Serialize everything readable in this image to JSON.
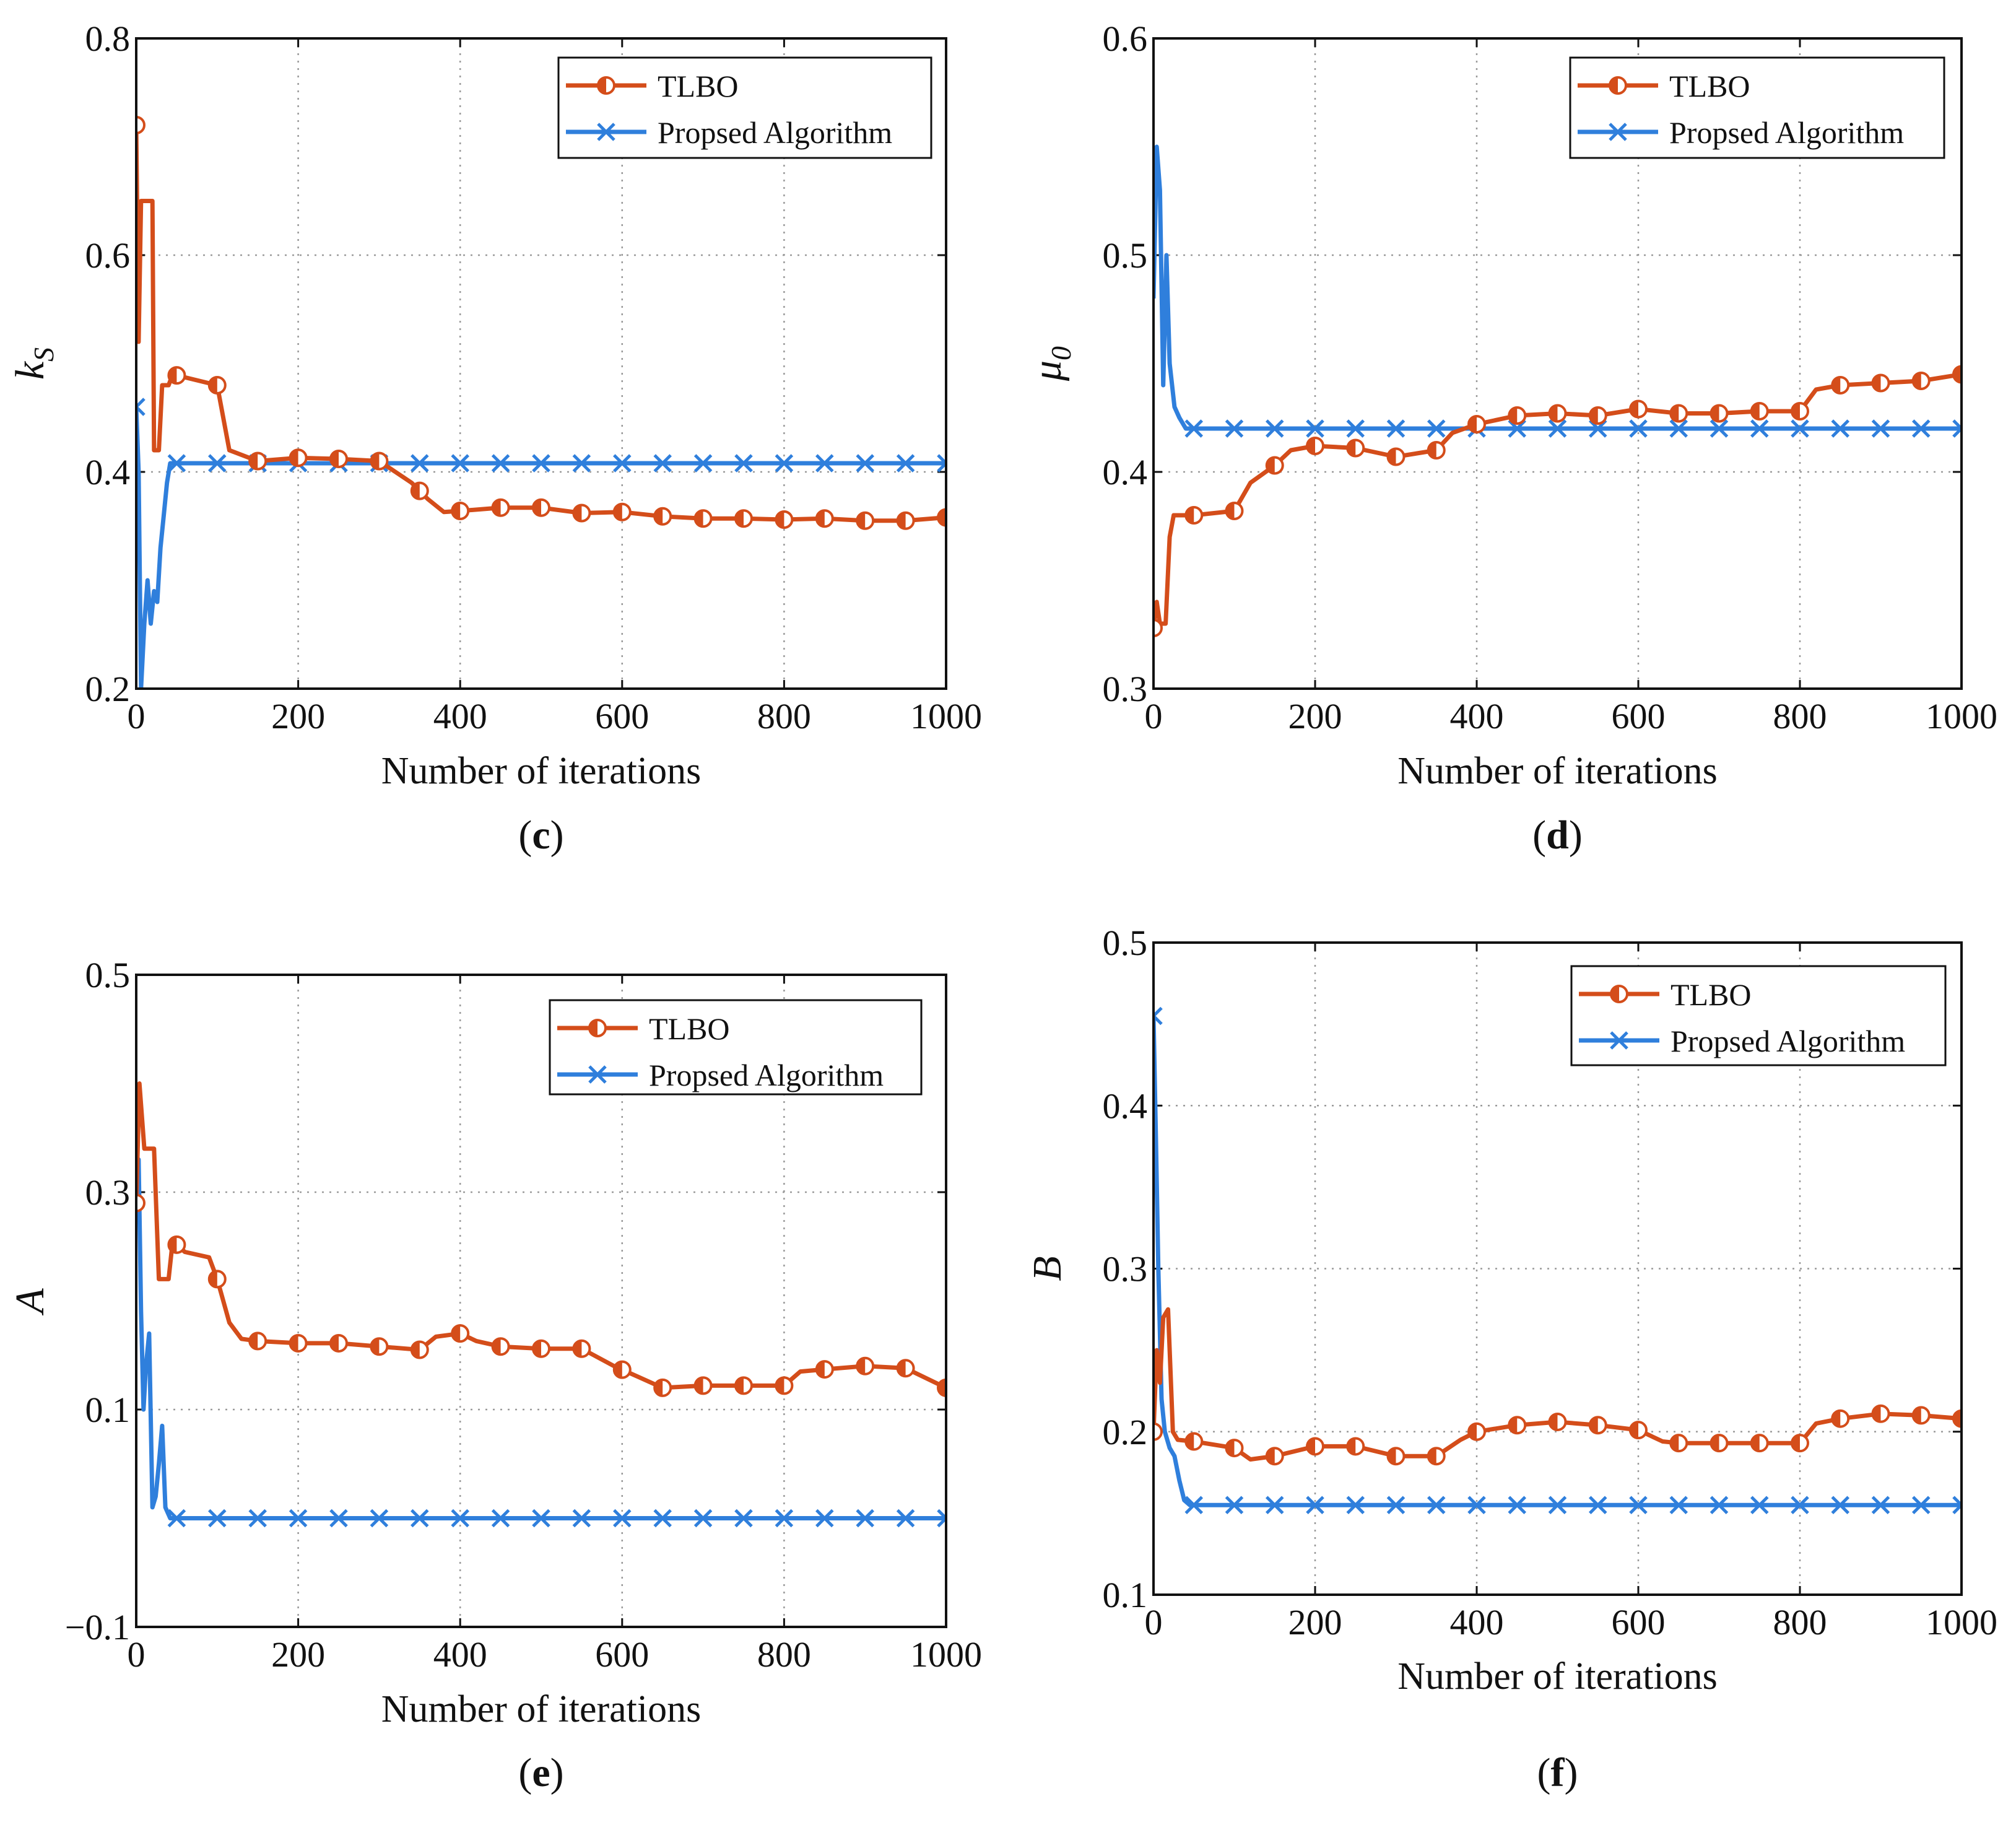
{
  "colors": {
    "tlbo": "#d44d1a",
    "proposed": "#2f7fdc"
  },
  "chart_data": [
    {
      "panel": "c",
      "type": "line",
      "caption": "c",
      "xlabel": "Number of iterations",
      "ylabel": "k",
      "ylabel_sub": "S",
      "xlim": [
        0,
        1000
      ],
      "ylim": [
        0.2,
        0.8
      ],
      "xticks": [
        "0",
        "200",
        "400",
        "600",
        "800",
        "1000"
      ],
      "yticks": [
        "0.2",
        "0.4",
        "0.6",
        "0.8"
      ],
      "legend": {
        "position": "top-right",
        "entries": [
          "TLBO",
          "Propsed Algorithm"
        ]
      },
      "series": [
        {
          "name": "TLBO",
          "marker": "half-circle",
          "points": [
            [
              0,
              0.72
            ],
            [
              3,
              0.52
            ],
            [
              6,
              0.65
            ],
            [
              20,
              0.65
            ],
            [
              22,
              0.42
            ],
            [
              28,
              0.42
            ],
            [
              32,
              0.48
            ],
            [
              40,
              0.48
            ],
            [
              45,
              0.49
            ],
            [
              100,
              0.48
            ],
            [
              115,
              0.42
            ],
            [
              150,
              0.41
            ],
            [
              200,
              0.413
            ],
            [
              250,
              0.412
            ],
            [
              300,
              0.41
            ],
            [
              320,
              0.4
            ],
            [
              340,
              0.39
            ],
            [
              360,
              0.375
            ],
            [
              380,
              0.363
            ],
            [
              400,
              0.364
            ],
            [
              450,
              0.367
            ],
            [
              500,
              0.367
            ],
            [
              550,
              0.362
            ],
            [
              600,
              0.363
            ],
            [
              650,
              0.359
            ],
            [
              700,
              0.357
            ],
            [
              750,
              0.357
            ],
            [
              800,
              0.356
            ],
            [
              850,
              0.357
            ],
            [
              900,
              0.355
            ],
            [
              950,
              0.355
            ],
            [
              1000,
              0.358
            ]
          ],
          "marker_x": [
            0,
            50,
            100,
            150,
            200,
            250,
            300,
            350,
            400,
            450,
            500,
            550,
            600,
            650,
            700,
            750,
            800,
            850,
            900,
            950,
            1000
          ]
        },
        {
          "name": "Propsed Algorithm",
          "marker": "x",
          "points": [
            [
              0,
              0.46
            ],
            [
              3,
              0.4
            ],
            [
              6,
              0.2
            ],
            [
              10,
              0.26
            ],
            [
              14,
              0.3
            ],
            [
              18,
              0.26
            ],
            [
              22,
              0.29
            ],
            [
              26,
              0.28
            ],
            [
              30,
              0.33
            ],
            [
              34,
              0.36
            ],
            [
              38,
              0.39
            ],
            [
              42,
              0.408
            ],
            [
              50,
              0.408
            ],
            [
              1000,
              0.408
            ]
          ],
          "marker_x": [
            0,
            50,
            100,
            150,
            200,
            250,
            300,
            350,
            400,
            450,
            500,
            550,
            600,
            650,
            700,
            750,
            800,
            850,
            900,
            950,
            1000
          ]
        }
      ]
    },
    {
      "panel": "d",
      "type": "line",
      "caption": "d",
      "xlabel": "Number of iterations",
      "ylabel": "μ",
      "ylabel_sub": "0",
      "xlim": [
        0,
        1000
      ],
      "ylim": [
        0.3,
        0.6
      ],
      "xticks": [
        "0",
        "200",
        "400",
        "600",
        "800",
        "1000"
      ],
      "yticks": [
        "0.3",
        "0.4",
        "0.5",
        "0.6"
      ],
      "legend": {
        "position": "top-right",
        "entries": [
          "TLBO",
          "Propsed Algorithm"
        ]
      },
      "series": [
        {
          "name": "TLBO",
          "marker": "half-circle",
          "points": [
            [
              0,
              0.328
            ],
            [
              4,
              0.34
            ],
            [
              8,
              0.33
            ],
            [
              15,
              0.33
            ],
            [
              20,
              0.37
            ],
            [
              25,
              0.38
            ],
            [
              50,
              0.38
            ],
            [
              100,
              0.382
            ],
            [
              120,
              0.395
            ],
            [
              150,
              0.403
            ],
            [
              170,
              0.41
            ],
            [
              200,
              0.412
            ],
            [
              250,
              0.411
            ],
            [
              300,
              0.407
            ],
            [
              350,
              0.41
            ],
            [
              370,
              0.418
            ],
            [
              400,
              0.422
            ],
            [
              450,
              0.426
            ],
            [
              500,
              0.427
            ],
            [
              550,
              0.426
            ],
            [
              600,
              0.429
            ],
            [
              650,
              0.427
            ],
            [
              700,
              0.427
            ],
            [
              750,
              0.428
            ],
            [
              800,
              0.428
            ],
            [
              820,
              0.438
            ],
            [
              850,
              0.44
            ],
            [
              900,
              0.441
            ],
            [
              950,
              0.442
            ],
            [
              1000,
              0.445
            ]
          ],
          "marker_x": [
            0,
            50,
            100,
            150,
            200,
            250,
            300,
            350,
            400,
            450,
            500,
            550,
            600,
            650,
            700,
            750,
            800,
            850,
            900,
            950,
            1000
          ]
        },
        {
          "name": "Propsed Algorithm",
          "marker": "x",
          "points": [
            [
              0,
              0.48
            ],
            [
              4,
              0.55
            ],
            [
              8,
              0.53
            ],
            [
              12,
              0.44
            ],
            [
              16,
              0.5
            ],
            [
              20,
              0.45
            ],
            [
              26,
              0.43
            ],
            [
              32,
              0.425
            ],
            [
              40,
              0.42
            ],
            [
              50,
              0.42
            ],
            [
              1000,
              0.42
            ]
          ],
          "marker_x": [
            50,
            100,
            150,
            200,
            250,
            300,
            350,
            400,
            450,
            500,
            550,
            600,
            650,
            700,
            750,
            800,
            850,
            900,
            950,
            1000
          ]
        }
      ]
    },
    {
      "panel": "e",
      "type": "line",
      "caption": "e",
      "xlabel": "Number of iterations",
      "ylabel": "A",
      "ylabel_sub": "",
      "xlim": [
        0,
        1000
      ],
      "ylim": [
        -0.1,
        0.5
      ],
      "xticks": [
        "0",
        "200",
        "400",
        "600",
        "800",
        "1000"
      ],
      "yticks": [
        "−0.1",
        "0.1",
        "0.3",
        "0.5"
      ],
      "legend": {
        "position": "top-right",
        "entries": [
          "TLBO",
          "Propsed Algorithm"
        ]
      },
      "series": [
        {
          "name": "TLBO",
          "marker": "half-circle",
          "points": [
            [
              0,
              0.29
            ],
            [
              4,
              0.4
            ],
            [
              10,
              0.34
            ],
            [
              22,
              0.34
            ],
            [
              28,
              0.22
            ],
            [
              40,
              0.22
            ],
            [
              45,
              0.255
            ],
            [
              60,
              0.245
            ],
            [
              90,
              0.24
            ],
            [
              100,
              0.22
            ],
            [
              115,
              0.18
            ],
            [
              130,
              0.165
            ],
            [
              150,
              0.163
            ],
            [
              200,
              0.161
            ],
            [
              250,
              0.161
            ],
            [
              300,
              0.158
            ],
            [
              350,
              0.155
            ],
            [
              370,
              0.167
            ],
            [
              400,
              0.17
            ],
            [
              420,
              0.163
            ],
            [
              450,
              0.158
            ],
            [
              500,
              0.156
            ],
            [
              550,
              0.156
            ],
            [
              590,
              0.14
            ],
            [
              620,
              0.13
            ],
            [
              650,
              0.12
            ],
            [
              700,
              0.122
            ],
            [
              750,
              0.122
            ],
            [
              800,
              0.122
            ],
            [
              820,
              0.135
            ],
            [
              850,
              0.137
            ],
            [
              900,
              0.14
            ],
            [
              950,
              0.138
            ],
            [
              1000,
              0.12
            ]
          ],
          "marker_x": [
            0,
            50,
            100,
            150,
            200,
            250,
            300,
            350,
            400,
            450,
            500,
            550,
            600,
            650,
            700,
            750,
            800,
            850,
            900,
            950,
            1000
          ]
        },
        {
          "name": "Propsed Algorithm",
          "marker": "x",
          "points": [
            [
              0,
              0.3
            ],
            [
              3,
              0.33
            ],
            [
              6,
              0.19
            ],
            [
              9,
              0.1
            ],
            [
              12,
              0.14
            ],
            [
              16,
              0.17
            ],
            [
              20,
              0.01
            ],
            [
              24,
              0.02
            ],
            [
              28,
              0.05
            ],
            [
              32,
              0.085
            ],
            [
              36,
              0.01
            ],
            [
              42,
              0.0
            ],
            [
              50,
              0.0
            ],
            [
              1000,
              0.0
            ]
          ],
          "marker_x": [
            50,
            100,
            150,
            200,
            250,
            300,
            350,
            400,
            450,
            500,
            550,
            600,
            650,
            700,
            750,
            800,
            850,
            900,
            950,
            1000
          ]
        }
      ]
    },
    {
      "panel": "f",
      "type": "line",
      "caption": "f",
      "xlabel": "Number of iterations",
      "ylabel": "B",
      "ylabel_sub": "",
      "xlim": [
        0,
        1000
      ],
      "ylim": [
        0.1,
        0.5
      ],
      "xticks": [
        "0",
        "200",
        "400",
        "600",
        "800",
        "1000"
      ],
      "yticks": [
        "0.1",
        "0.2",
        "0.3",
        "0.4",
        "0.5"
      ],
      "legend": {
        "position": "top-right",
        "entries": [
          "TLBO",
          "Propsed Algorithm"
        ]
      },
      "series": [
        {
          "name": "TLBO",
          "marker": "half-circle",
          "points": [
            [
              0,
              0.2
            ],
            [
              4,
              0.25
            ],
            [
              8,
              0.23
            ],
            [
              12,
              0.27
            ],
            [
              18,
              0.275
            ],
            [
              24,
              0.2
            ],
            [
              30,
              0.195
            ],
            [
              50,
              0.194
            ],
            [
              100,
              0.19
            ],
            [
              120,
              0.183
            ],
            [
              150,
              0.185
            ],
            [
              200,
              0.191
            ],
            [
              250,
              0.191
            ],
            [
              300,
              0.185
            ],
            [
              350,
              0.185
            ],
            [
              380,
              0.195
            ],
            [
              400,
              0.2
            ],
            [
              450,
              0.204
            ],
            [
              500,
              0.206
            ],
            [
              550,
              0.204
            ],
            [
              600,
              0.201
            ],
            [
              630,
              0.194
            ],
            [
              650,
              0.193
            ],
            [
              700,
              0.193
            ],
            [
              750,
              0.193
            ],
            [
              800,
              0.193
            ],
            [
              820,
              0.205
            ],
            [
              850,
              0.208
            ],
            [
              900,
              0.211
            ],
            [
              950,
              0.21
            ],
            [
              1000,
              0.208
            ]
          ],
          "marker_x": [
            0,
            50,
            100,
            150,
            200,
            250,
            300,
            350,
            400,
            450,
            500,
            550,
            600,
            650,
            700,
            750,
            800,
            850,
            900,
            950,
            1000
          ]
        },
        {
          "name": "Propsed Algorithm",
          "marker": "x",
          "points": [
            [
              0,
              0.455
            ],
            [
              3,
              0.38
            ],
            [
              6,
              0.3
            ],
            [
              10,
              0.22
            ],
            [
              14,
              0.2
            ],
            [
              20,
              0.19
            ],
            [
              26,
              0.185
            ],
            [
              32,
              0.17
            ],
            [
              38,
              0.158
            ],
            [
              45,
              0.155
            ],
            [
              50,
              0.155
            ],
            [
              1000,
              0.155
            ]
          ],
          "marker_x": [
            0,
            50,
            100,
            150,
            200,
            250,
            300,
            350,
            400,
            450,
            500,
            550,
            600,
            650,
            700,
            750,
            800,
            850,
            900,
            950,
            1000
          ]
        }
      ]
    }
  ]
}
